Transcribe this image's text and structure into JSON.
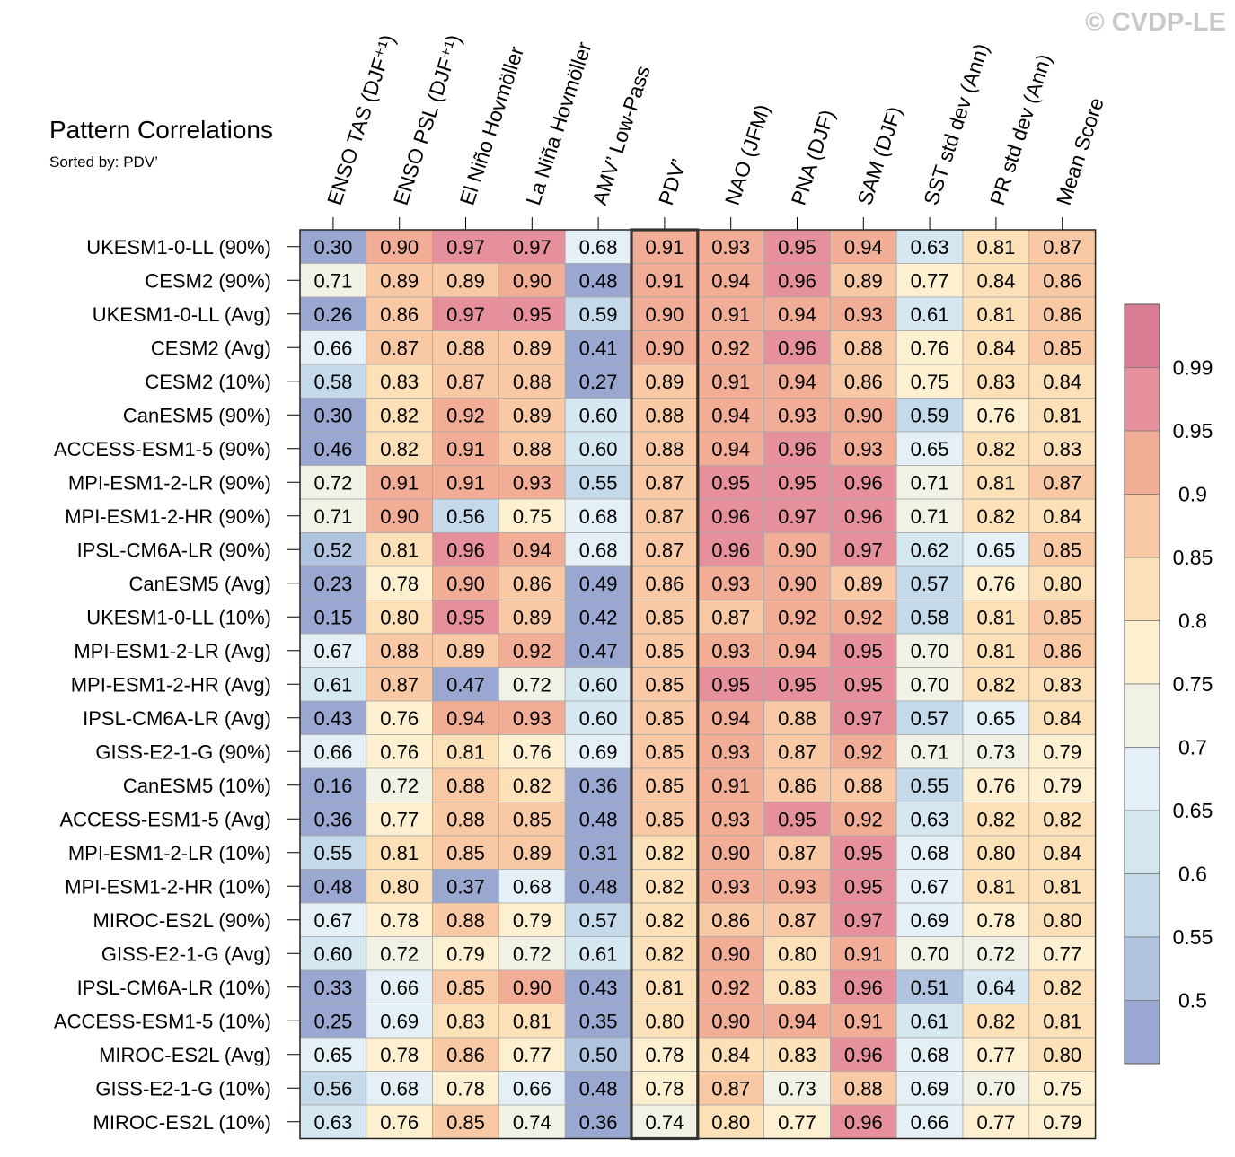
{
  "chart_data": {
    "type": "heatmap",
    "title": "Pattern Correlations",
    "subtitle": "Sorted by: PDV’",
    "watermark": "© CVDP-LE",
    "highlight_column": "PDV’",
    "columns": [
      "ENSO TAS (DJF⁺¹)",
      "ENSO PSL (DJF⁺¹)",
      "El Niño Hovmöller",
      "La Niña Hovmöller",
      "AMV’ Low-Pass",
      "PDV’",
      "NAO (JFM)",
      "PNA (DJF)",
      "SAM (DJF)",
      "SST std dev (Ann)",
      "PR std dev (Ann)",
      "Mean Score"
    ],
    "rows": [
      {
        "label": "UKESM1-0-LL (90%)",
        "values": [
          "0.30",
          "0.90",
          "0.97",
          "0.97",
          "0.68",
          "0.91",
          "0.93",
          "0.95",
          "0.94",
          "0.63",
          "0.81",
          "0.87"
        ]
      },
      {
        "label": "CESM2 (90%)",
        "values": [
          "0.71",
          "0.89",
          "0.89",
          "0.90",
          "0.48",
          "0.91",
          "0.94",
          "0.96",
          "0.89",
          "0.77",
          "0.84",
          "0.86"
        ]
      },
      {
        "label": "UKESM1-0-LL (Avg)",
        "values": [
          "0.26",
          "0.86",
          "0.97",
          "0.95",
          "0.59",
          "0.90",
          "0.91",
          "0.94",
          "0.93",
          "0.61",
          "0.81",
          "0.86"
        ]
      },
      {
        "label": "CESM2 (Avg)",
        "values": [
          "0.66",
          "0.87",
          "0.88",
          "0.89",
          "0.41",
          "0.90",
          "0.92",
          "0.96",
          "0.88",
          "0.76",
          "0.84",
          "0.85"
        ]
      },
      {
        "label": "CESM2 (10%)",
        "values": [
          "0.58",
          "0.83",
          "0.87",
          "0.88",
          "0.27",
          "0.89",
          "0.91",
          "0.94",
          "0.86",
          "0.75",
          "0.83",
          "0.84"
        ]
      },
      {
        "label": "CanESM5 (90%)",
        "values": [
          "0.30",
          "0.82",
          "0.92",
          "0.89",
          "0.60",
          "0.88",
          "0.94",
          "0.93",
          "0.90",
          "0.59",
          "0.76",
          "0.81"
        ]
      },
      {
        "label": "ACCESS-ESM1-5 (90%)",
        "values": [
          "0.46",
          "0.82",
          "0.91",
          "0.88",
          "0.60",
          "0.88",
          "0.94",
          "0.96",
          "0.93",
          "0.65",
          "0.82",
          "0.83"
        ]
      },
      {
        "label": "MPI-ESM1-2-LR (90%)",
        "values": [
          "0.72",
          "0.91",
          "0.91",
          "0.93",
          "0.55",
          "0.87",
          "0.95",
          "0.95",
          "0.96",
          "0.71",
          "0.81",
          "0.87"
        ]
      },
      {
        "label": "MPI-ESM1-2-HR (90%)",
        "values": [
          "0.71",
          "0.90",
          "0.56",
          "0.75",
          "0.68",
          "0.87",
          "0.96",
          "0.97",
          "0.96",
          "0.71",
          "0.82",
          "0.84"
        ]
      },
      {
        "label": "IPSL-CM6A-LR (90%)",
        "values": [
          "0.52",
          "0.81",
          "0.96",
          "0.94",
          "0.68",
          "0.87",
          "0.96",
          "0.90",
          "0.97",
          "0.62",
          "0.65",
          "0.85"
        ]
      },
      {
        "label": "CanESM5 (Avg)",
        "values": [
          "0.23",
          "0.78",
          "0.90",
          "0.86",
          "0.49",
          "0.86",
          "0.93",
          "0.90",
          "0.89",
          "0.57",
          "0.76",
          "0.80"
        ]
      },
      {
        "label": "UKESM1-0-LL (10%)",
        "values": [
          "0.15",
          "0.80",
          "0.95",
          "0.89",
          "0.42",
          "0.85",
          "0.87",
          "0.92",
          "0.92",
          "0.58",
          "0.81",
          "0.85"
        ]
      },
      {
        "label": "MPI-ESM1-2-LR (Avg)",
        "values": [
          "0.67",
          "0.88",
          "0.89",
          "0.92",
          "0.47",
          "0.85",
          "0.93",
          "0.94",
          "0.95",
          "0.70",
          "0.81",
          "0.86"
        ]
      },
      {
        "label": "MPI-ESM1-2-HR (Avg)",
        "values": [
          "0.61",
          "0.87",
          "0.47",
          "0.72",
          "0.60",
          "0.85",
          "0.95",
          "0.95",
          "0.95",
          "0.70",
          "0.82",
          "0.83"
        ]
      },
      {
        "label": "IPSL-CM6A-LR (Avg)",
        "values": [
          "0.43",
          "0.76",
          "0.94",
          "0.93",
          "0.60",
          "0.85",
          "0.94",
          "0.88",
          "0.97",
          "0.57",
          "0.65",
          "0.84"
        ]
      },
      {
        "label": "GISS-E2-1-G (90%)",
        "values": [
          "0.66",
          "0.76",
          "0.81",
          "0.76",
          "0.69",
          "0.85",
          "0.93",
          "0.87",
          "0.92",
          "0.71",
          "0.73",
          "0.79"
        ]
      },
      {
        "label": "CanESM5 (10%)",
        "values": [
          "0.16",
          "0.72",
          "0.88",
          "0.82",
          "0.36",
          "0.85",
          "0.91",
          "0.86",
          "0.88",
          "0.55",
          "0.76",
          "0.79"
        ]
      },
      {
        "label": "ACCESS-ESM1-5 (Avg)",
        "values": [
          "0.36",
          "0.77",
          "0.88",
          "0.85",
          "0.48",
          "0.85",
          "0.93",
          "0.95",
          "0.92",
          "0.63",
          "0.82",
          "0.82"
        ]
      },
      {
        "label": "MPI-ESM1-2-LR (10%)",
        "values": [
          "0.55",
          "0.81",
          "0.85",
          "0.89",
          "0.31",
          "0.82",
          "0.90",
          "0.87",
          "0.95",
          "0.68",
          "0.80",
          "0.84"
        ]
      },
      {
        "label": "MPI-ESM1-2-HR (10%)",
        "values": [
          "0.48",
          "0.80",
          "0.37",
          "0.68",
          "0.48",
          "0.82",
          "0.93",
          "0.93",
          "0.95",
          "0.67",
          "0.81",
          "0.81"
        ]
      },
      {
        "label": "MIROC-ES2L (90%)",
        "values": [
          "0.67",
          "0.78",
          "0.88",
          "0.79",
          "0.57",
          "0.82",
          "0.86",
          "0.87",
          "0.97",
          "0.69",
          "0.78",
          "0.80"
        ]
      },
      {
        "label": "GISS-E2-1-G (Avg)",
        "values": [
          "0.60",
          "0.72",
          "0.79",
          "0.72",
          "0.61",
          "0.82",
          "0.90",
          "0.80",
          "0.91",
          "0.70",
          "0.72",
          "0.77"
        ]
      },
      {
        "label": "IPSL-CM6A-LR (10%)",
        "values": [
          "0.33",
          "0.66",
          "0.85",
          "0.90",
          "0.43",
          "0.81",
          "0.92",
          "0.83",
          "0.96",
          "0.51",
          "0.64",
          "0.82"
        ]
      },
      {
        "label": "ACCESS-ESM1-5 (10%)",
        "values": [
          "0.25",
          "0.69",
          "0.83",
          "0.81",
          "0.35",
          "0.80",
          "0.90",
          "0.94",
          "0.91",
          "0.61",
          "0.82",
          "0.81"
        ]
      },
      {
        "label": "MIROC-ES2L (Avg)",
        "values": [
          "0.65",
          "0.78",
          "0.86",
          "0.77",
          "0.50",
          "0.78",
          "0.84",
          "0.83",
          "0.96",
          "0.68",
          "0.77",
          "0.80"
        ]
      },
      {
        "label": "GISS-E2-1-G (10%)",
        "values": [
          "0.56",
          "0.68",
          "0.78",
          "0.66",
          "0.48",
          "0.78",
          "0.87",
          "0.73",
          "0.88",
          "0.69",
          "0.70",
          "0.75"
        ]
      },
      {
        "label": "MIROC-ES2L (10%)",
        "values": [
          "0.63",
          "0.76",
          "0.85",
          "0.74",
          "0.36",
          "0.74",
          "0.80",
          "0.77",
          "0.96",
          "0.66",
          "0.77",
          "0.79"
        ]
      }
    ],
    "colorbar": {
      "tick_labels": [
        "0.99",
        "0.95",
        "0.9",
        "0.85",
        "0.8",
        "0.75",
        "0.7",
        "0.65",
        "0.6",
        "0.55",
        "0.5"
      ],
      "levels": [
        0.5,
        0.55,
        0.6,
        0.65,
        0.7,
        0.75,
        0.8,
        0.85,
        0.9,
        0.95,
        0.99
      ],
      "colors": [
        "#9aa7d0",
        "#b0c3df",
        "#c4d9e9",
        "#d5e7f1",
        "#e4f0f5",
        "#f1f1e6",
        "#fdf0d0",
        "#fce0b8",
        "#f8c9a4",
        "#f2ad96",
        "#e5909a",
        "#d77c92"
      ]
    }
  }
}
